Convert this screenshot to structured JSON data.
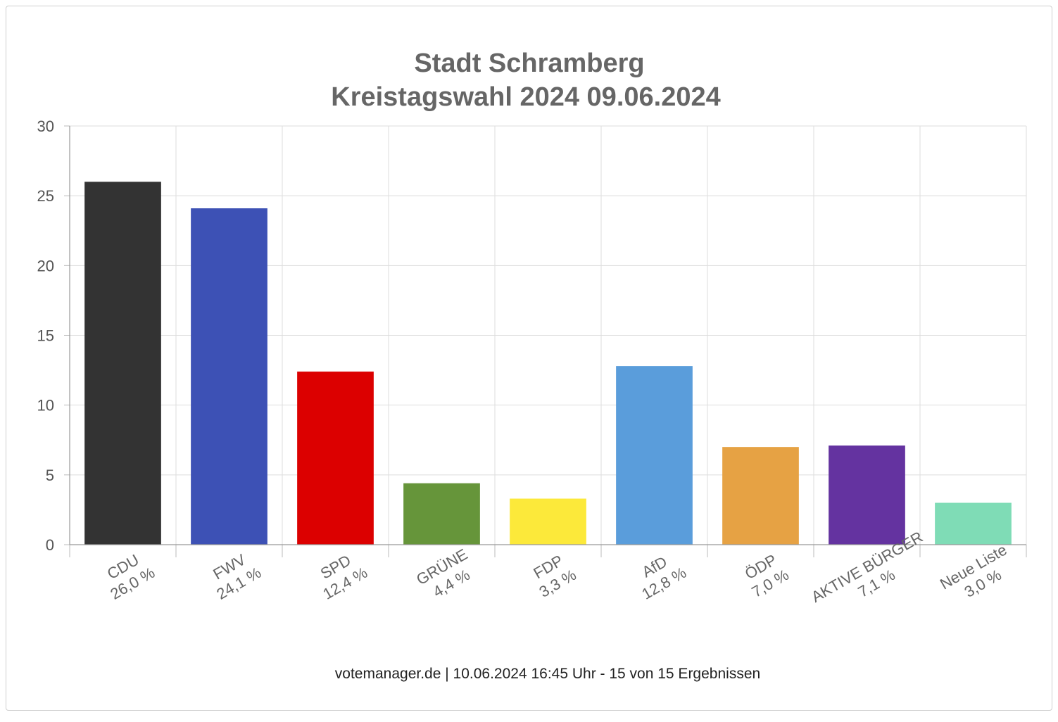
{
  "chart_data": {
    "type": "bar",
    "title": "Stadt Schramberg",
    "subtitle": "Kreistagswahl 2024 09.06.2024",
    "categories": [
      "CDU",
      "FWV",
      "SPD",
      "GRÜNE",
      "FDP",
      "AfD",
      "ÖDP",
      "AKTIVE BÜRGER",
      "Neue Liste"
    ],
    "values": [
      26.0,
      24.1,
      12.4,
      4.4,
      3.3,
      12.8,
      7.0,
      7.1,
      3.0
    ],
    "value_labels": [
      "26,0 %",
      "24,1 %",
      "12,4 %",
      "4,4 %",
      "3,3 %",
      "12,8 %",
      "7,0 %",
      "7,1 %",
      "3,0 %"
    ],
    "colors": [
      "#333333",
      "#3d51b5",
      "#dc0000",
      "#66953a",
      "#fce93a",
      "#5a9ddb",
      "#e6a244",
      "#6433a0",
      "#7fdcb6"
    ],
    "yticks": [
      "0",
      "5",
      "10",
      "15",
      "20",
      "25",
      "30"
    ],
    "ylim": [
      0,
      30
    ],
    "xlabel": "",
    "ylabel": "",
    "grid": true
  },
  "footer": "votemanager.de | 10.06.2024 16:45 Uhr - 15 von 15 Ergebnissen"
}
